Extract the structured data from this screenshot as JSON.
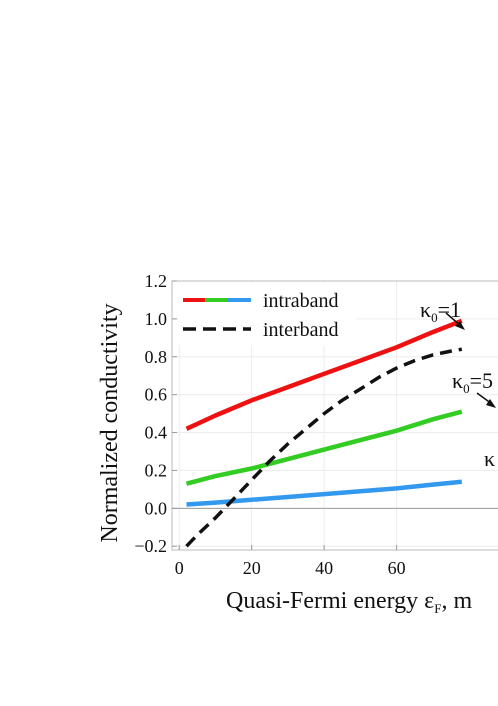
{
  "chart_data": {
    "type": "line",
    "xlabel_main": "Quasi-Fermi energy ε",
    "xlabel_sub": "F",
    "xlabel_tail": ", m",
    "ylabel": "Normalized conductivity",
    "xlim": [
      -2,
      88
    ],
    "ylim": [
      -0.22,
      1.2
    ],
    "x_ticks": [
      "0",
      "20",
      "40",
      "60"
    ],
    "y_ticks": [
      "−0.2",
      "0.0",
      "0.2",
      "0.4",
      "0.6",
      "0.8",
      "1.0",
      "1.2"
    ],
    "legend": [
      {
        "label": "intraband",
        "style": "solid",
        "colors": [
          "#ee1111",
          "#33cc22",
          "#3399ee"
        ]
      },
      {
        "label": "interband",
        "style": "dashed",
        "colors": [
          "#111111"
        ]
      }
    ],
    "series": [
      {
        "group": "intraband",
        "color": "#ee1111",
        "style": "solid",
        "x": [
          2,
          10,
          20,
          30,
          40,
          50,
          60,
          70,
          78
        ],
        "y": [
          0.42,
          0.49,
          0.57,
          0.64,
          0.71,
          0.78,
          0.85,
          0.93,
          0.99
        ]
      },
      {
        "group": "intraband",
        "color": "#33cc22",
        "style": "solid",
        "x": [
          2,
          10,
          20,
          30,
          40,
          50,
          60,
          70,
          78
        ],
        "y": [
          0.13,
          0.17,
          0.21,
          0.26,
          0.31,
          0.36,
          0.41,
          0.47,
          0.51
        ]
      },
      {
        "group": "intraband",
        "color": "#3399ee",
        "style": "solid",
        "x": [
          2,
          10,
          20,
          30,
          40,
          50,
          60,
          70,
          78
        ],
        "y": [
          0.02,
          0.03,
          0.045,
          0.06,
          0.075,
          0.09,
          0.105,
          0.125,
          0.14
        ]
      },
      {
        "group": "interband",
        "color": "#111111",
        "style": "dashed",
        "x": [
          2,
          5,
          10,
          15,
          20,
          25,
          30,
          35,
          40,
          45,
          50,
          55,
          60,
          65,
          70,
          75,
          78
        ],
        "y": [
          -0.2,
          -0.14,
          -0.05,
          0.05,
          0.15,
          0.25,
          0.34,
          0.42,
          0.5,
          0.57,
          0.63,
          0.69,
          0.74,
          0.78,
          0.81,
          0.83,
          0.84
        ]
      }
    ],
    "annotations": [
      {
        "text": "κ",
        "sub": "0",
        "tail": "=1"
      },
      {
        "text": "κ",
        "sub": "0",
        "tail": "=5"
      },
      {
        "text": "κ",
        "sub": "",
        "tail": ""
      }
    ]
  }
}
